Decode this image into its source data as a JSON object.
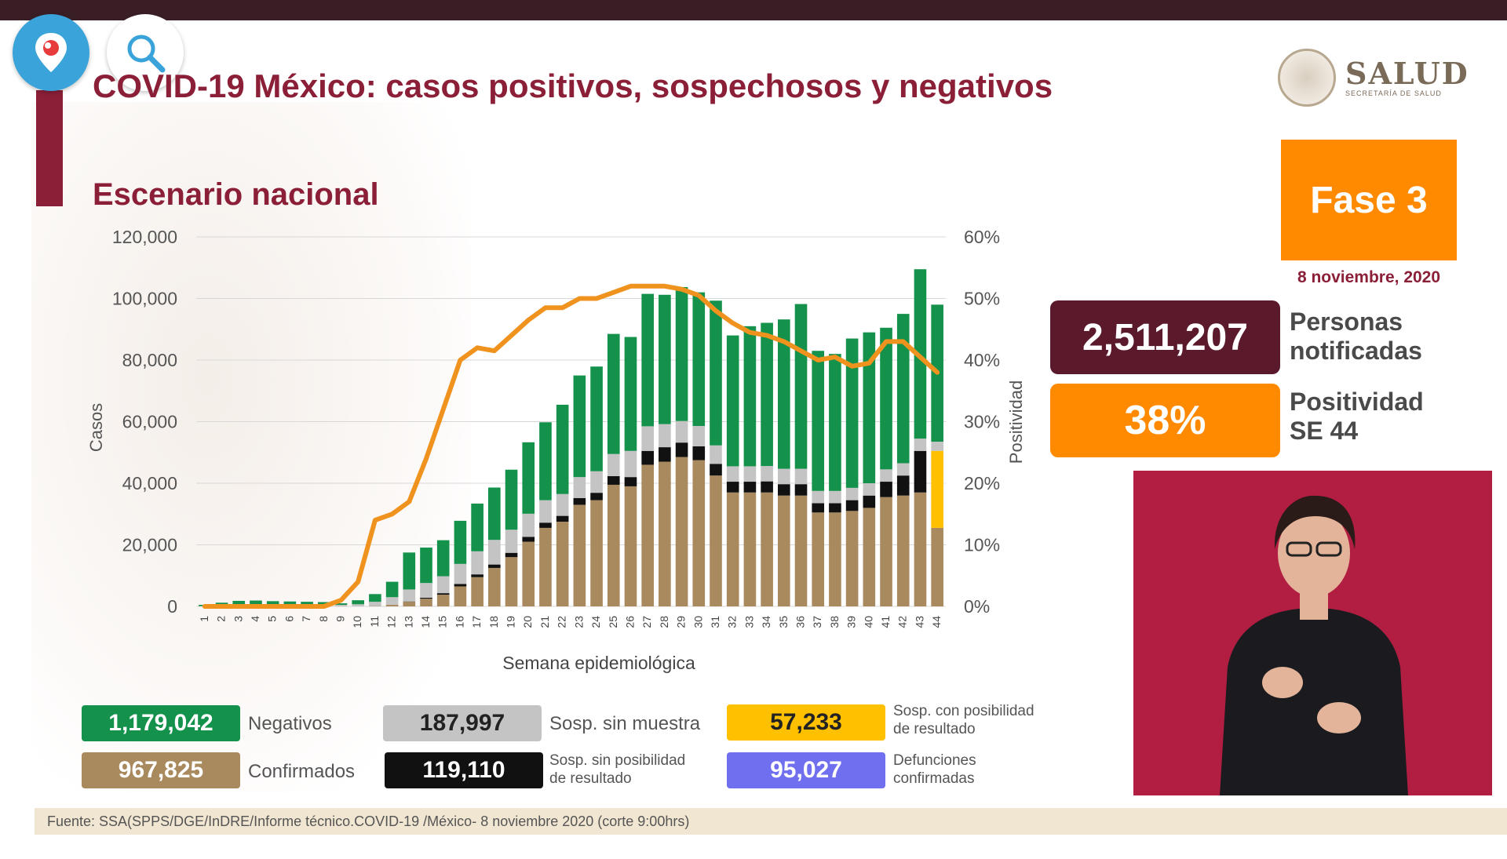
{
  "header": {
    "title": "COVID-19 México: casos positivos, sospechosos y negativos",
    "subtitle": "Escenario nacional"
  },
  "brand": {
    "name": "SALUD",
    "sub": "SECRETARÍA DE SALUD"
  },
  "phase": {
    "label": "Fase 3",
    "date": "8 noviembre, 2020"
  },
  "stats": {
    "personas_value": "2,511,207",
    "personas_label_1": "Personas",
    "personas_label_2": "notificadas",
    "positividad_value": "38%",
    "positividad_label_1": "Positividad",
    "positividad_label_2": "SE 44"
  },
  "legend": {
    "negativos_value": "1,179,042",
    "negativos_label": "Negativos",
    "confirmados_value": "967,825",
    "confirmados_label": "Confirmados",
    "sin_muestra_value": "187,997",
    "sin_muestra_label": "Sosp. sin muestra",
    "sin_posibilidad_value": "119,110",
    "sin_posibilidad_label_1": "Sosp. sin posibilidad",
    "sin_posibilidad_label_2": "de resultado",
    "con_posibilidad_value": "57,233",
    "con_posibilidad_label_1": "Sosp. con posibilidad",
    "con_posibilidad_label_2": "de resultado",
    "defunciones_value": "95,027",
    "defunciones_label_1": "Defunciones",
    "defunciones_label_2": "confirmadas"
  },
  "footer": {
    "source": "Fuente: SSA(SPPS/DGE/InDRE/Informe técnico.COVID-19 /México- 8 noviembre 2020 (corte 9:00hrs)"
  },
  "icons": {
    "periscope": "periscope-pin-icon",
    "search": "search-icon"
  },
  "colors": {
    "confirmados": "#a98a5f",
    "sin_posibilidad": "#111111",
    "sin_muestra": "#c4c4c4",
    "negativos": "#14914b",
    "con_posibilidad": "#ffc000",
    "positividad": "#f0921e",
    "defunciones": "#6f6ff0",
    "brand": "#8b1f38",
    "fase": "#ff8a00"
  },
  "chart_data": {
    "type": "bar",
    "stacked": true,
    "xlabel": "Semana epidemiológica",
    "ylabel": "Casos",
    "y2label": "Positividad",
    "ylim": [
      0,
      120000
    ],
    "y2lim": [
      0,
      60
    ],
    "yticks": [
      "0",
      "20,000",
      "40,000",
      "60,000",
      "80,000",
      "100,000",
      "120,000"
    ],
    "y2ticks": [
      "0%",
      "10%",
      "20%",
      "30%",
      "40%",
      "50%",
      "60%"
    ],
    "grid": true,
    "categories": [
      "1",
      "2",
      "3",
      "4",
      "5",
      "6",
      "7",
      "8",
      "9",
      "10",
      "11",
      "12",
      "13",
      "14",
      "15",
      "16",
      "17",
      "18",
      "19",
      "20",
      "21",
      "22",
      "23",
      "24",
      "25",
      "26",
      "27",
      "28",
      "29",
      "30",
      "31",
      "32",
      "33",
      "34",
      "35",
      "36",
      "37",
      "38",
      "39",
      "40",
      "41",
      "42",
      "43",
      "44"
    ],
    "series": [
      {
        "key": "confirmados",
        "values": [
          0,
          0,
          0,
          0,
          0,
          0,
          0,
          0,
          0,
          0,
          100,
          500,
          1500,
          2500,
          3800,
          6500,
          9500,
          12500,
          16000,
          21000,
          25500,
          27500,
          33000,
          34500,
          39500,
          39000,
          46000,
          47000,
          48500,
          47500,
          42500,
          37000,
          37000,
          37000,
          36000,
          36000,
          30500,
          30500,
          31000,
          32000,
          35500,
          36000,
          37000,
          25500
        ]
      },
      {
        "key": "sin_posibilidad",
        "values": [
          0,
          0,
          0,
          0,
          0,
          0,
          0,
          0,
          0,
          0,
          0,
          0,
          100,
          300,
          500,
          800,
          900,
          1100,
          1400,
          1600,
          1700,
          1900,
          2200,
          2400,
          2800,
          3000,
          4500,
          4700,
          4700,
          4500,
          3800,
          3500,
          3500,
          3600,
          3700,
          3700,
          3000,
          3000,
          3500,
          4000,
          5000,
          6500,
          13500,
          0
        ]
      },
      {
        "key": "con_posibilidad",
        "values": [
          0,
          0,
          0,
          0,
          0,
          0,
          0,
          0,
          0,
          0,
          0,
          0,
          0,
          0,
          0,
          0,
          0,
          0,
          0,
          0,
          0,
          0,
          0,
          0,
          0,
          0,
          0,
          0,
          0,
          0,
          0,
          0,
          0,
          0,
          0,
          0,
          0,
          0,
          0,
          0,
          0,
          0,
          0,
          25000
        ]
      },
      {
        "key": "sin_muestra",
        "values": [
          100,
          200,
          300,
          400,
          400,
          400,
          400,
          400,
          500,
          700,
          1400,
          2500,
          3900,
          4800,
          5500,
          6500,
          7500,
          8000,
          7500,
          7500,
          7300,
          7100,
          6800,
          7000,
          7200,
          8500,
          8000,
          7500,
          7000,
          6600,
          6000,
          5000,
          5000,
          5000,
          5000,
          5000,
          4000,
          4000,
          4000,
          4000,
          4000,
          4000,
          4000,
          3000
        ]
      },
      {
        "key": "negativos",
        "values": [
          400,
          1000,
          1500,
          1500,
          1300,
          1200,
          1100,
          1000,
          500,
          1300,
          2500,
          5000,
          12000,
          11500,
          11700,
          14000,
          15500,
          17000,
          19500,
          23200,
          25300,
          29000,
          33000,
          34000,
          39000,
          37000,
          43000,
          42000,
          43500,
          43400,
          47000,
          42500,
          45500,
          46500,
          48500,
          53500,
          45500,
          44500,
          48500,
          49000,
          46000,
          48500,
          55000,
          44500
        ]
      }
    ],
    "positividad": [
      0,
      0,
      0,
      0,
      0,
      0,
      0,
      0,
      1,
      4,
      14,
      15,
      17,
      24,
      32,
      40,
      42,
      41.5,
      44,
      46.5,
      48.5,
      48.5,
      50,
      50,
      51,
      52,
      52,
      52,
      51.5,
      50.5,
      48,
      46,
      44.5,
      44,
      43,
      41.5,
      40,
      40.5,
      39,
      39.5,
      43,
      43,
      40.5,
      38
    ]
  }
}
